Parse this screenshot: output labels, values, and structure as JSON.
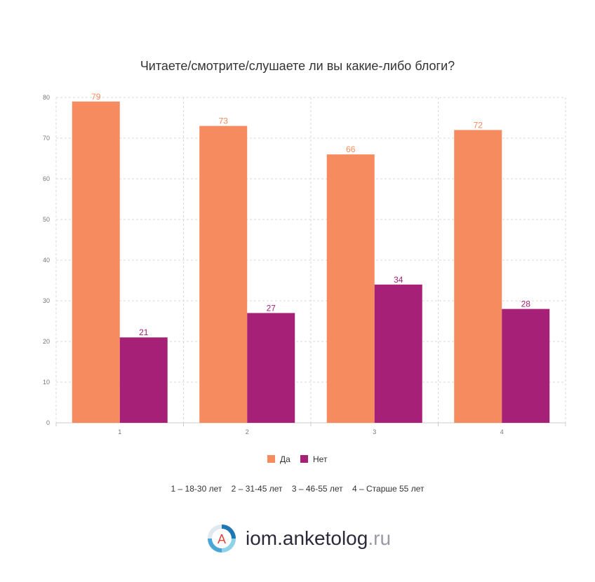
{
  "chart_data": {
    "type": "bar",
    "title": "Читаете/смотрите/слушаете ли вы какие-либо блоги?",
    "categories": [
      "1",
      "2",
      "3",
      "4"
    ],
    "series": [
      {
        "name": "Да",
        "color": "#f58b5e",
        "values": [
          79,
          73,
          66,
          72
        ]
      },
      {
        "name": "Нет",
        "color": "#a52076",
        "values": [
          21,
          27,
          34,
          28
        ]
      }
    ],
    "ylim": [
      0,
      80
    ],
    "yticks": [
      0,
      10,
      20,
      30,
      40,
      50,
      60,
      70,
      80
    ],
    "grid": true,
    "legend": "bottom-center",
    "note": "1 – 18-30 лет    2 – 31-45 лет    3 – 46-55 лет    4 – Старше 55 лет"
  },
  "brand": {
    "logo_letter": "A",
    "name": "iom.anketolog",
    "tld": ".ru"
  }
}
